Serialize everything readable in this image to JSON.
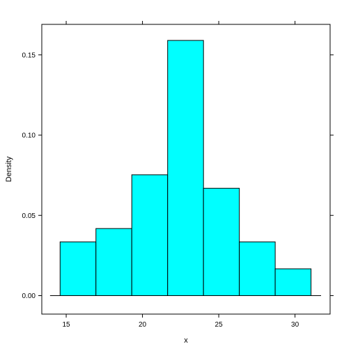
{
  "chart_data": {
    "type": "bar",
    "subtype": "histogram",
    "xlabel": "x",
    "ylabel": "Density",
    "xlim": [
      13.4,
      32.3
    ],
    "ylim": [
      -0.0115,
      0.169
    ],
    "x_ticks": [
      15,
      20,
      25,
      30
    ],
    "y_ticks": [
      0.0,
      0.05,
      0.1,
      0.15
    ],
    "y_tick_labels": [
      "0.00",
      "0.05",
      "0.10",
      "0.15"
    ],
    "bins": [
      {
        "x0": 14.6,
        "x1": 16.95,
        "density": 0.0335
      },
      {
        "x0": 16.95,
        "x1": 19.3,
        "density": 0.0418
      },
      {
        "x0": 19.3,
        "x1": 21.65,
        "density": 0.0753
      },
      {
        "x0": 21.65,
        "x1": 24.0,
        "density": 0.159
      },
      {
        "x0": 24.0,
        "x1": 26.35,
        "density": 0.0669
      },
      {
        "x0": 26.35,
        "x1": 28.7,
        "density": 0.0335
      },
      {
        "x0": 28.7,
        "x1": 31.05,
        "density": 0.0167
      }
    ],
    "baseline": 0,
    "fill_color": "#00FFFF",
    "stroke_color": "#000000",
    "grid": false,
    "legend": "none"
  }
}
